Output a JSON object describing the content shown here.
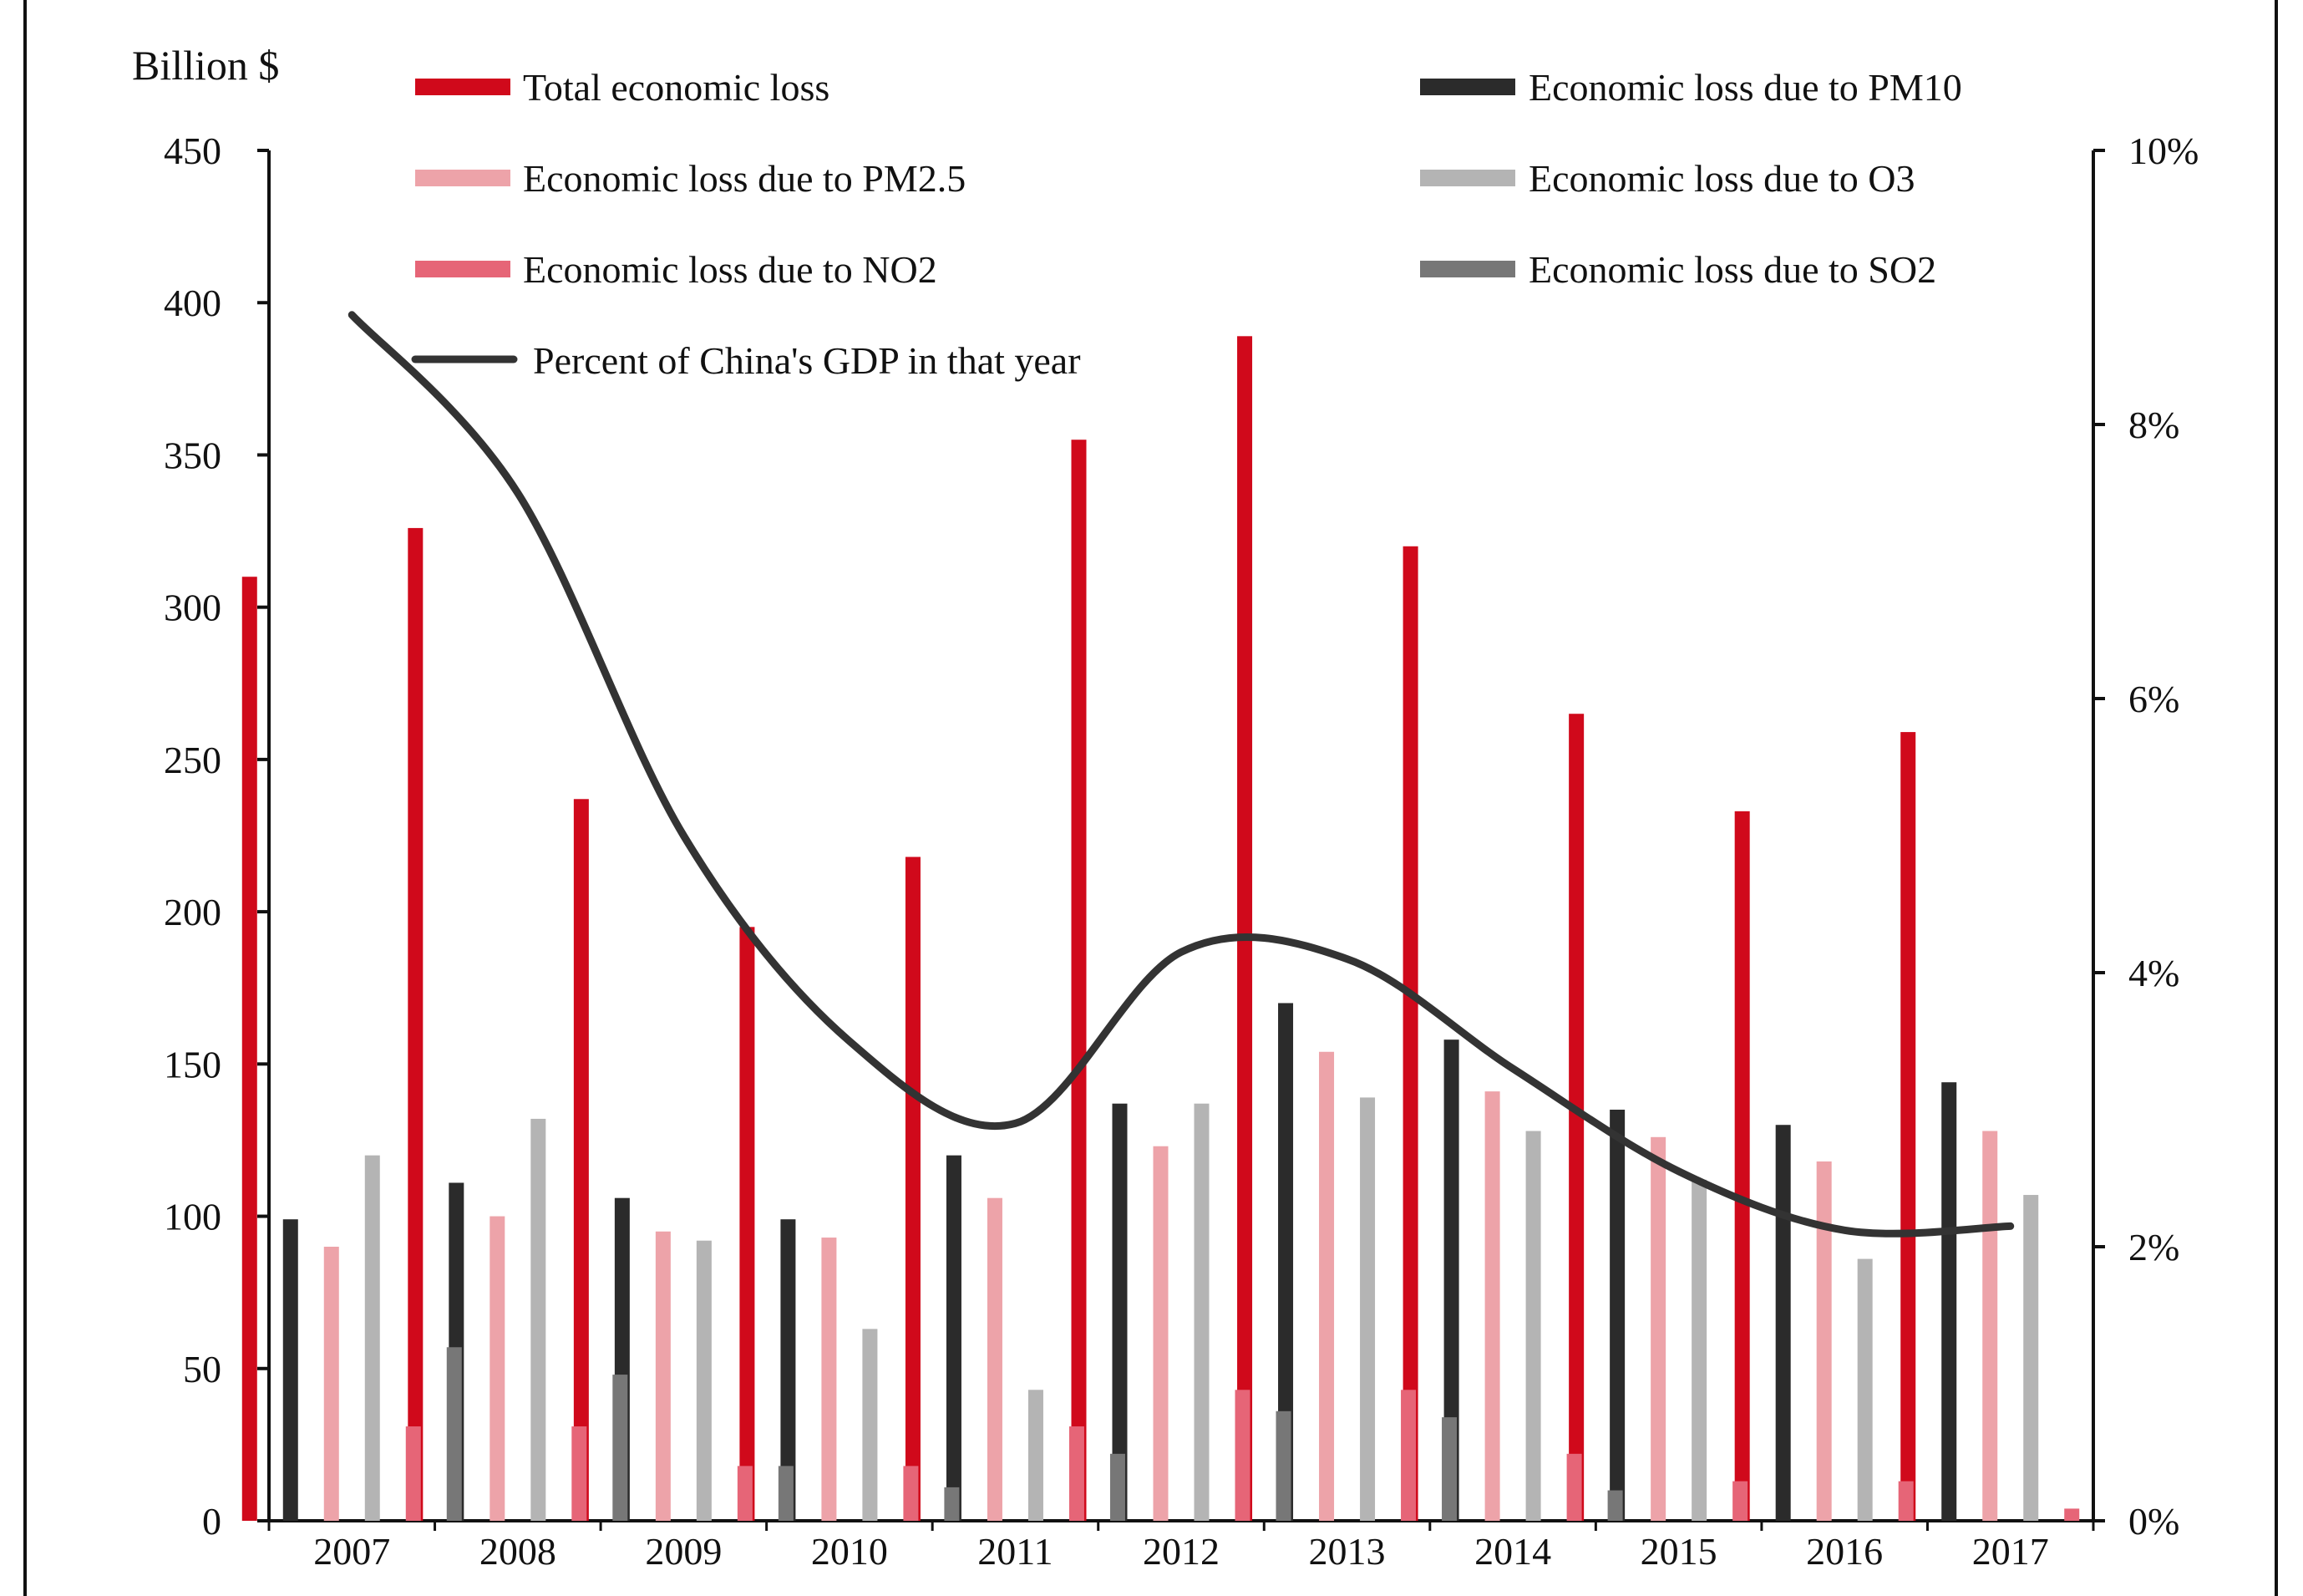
{
  "chart_data": {
    "type": "bar",
    "title": "",
    "xlabel": "",
    "ylabel": "Billion $",
    "y2label": "",
    "ylim": [
      0,
      450
    ],
    "y2lim": [
      0,
      10
    ],
    "yticks": [
      "0",
      "50",
      "100",
      "150",
      "200",
      "250",
      "300",
      "350",
      "400",
      "450"
    ],
    "y2ticks": [
      "0%",
      "2%",
      "4%",
      "6%",
      "8%",
      "10%"
    ],
    "categories": [
      "2007",
      "2008",
      "2009",
      "2010",
      "2011",
      "2012",
      "2013",
      "2014",
      "2015",
      "2016",
      "2017"
    ],
    "series": [
      {
        "key": "total",
        "name": "Total economic loss",
        "color": "#d0091b",
        "values": [
          310,
          326,
          237,
          195,
          218,
          355,
          389,
          320,
          265,
          233,
          259
        ]
      },
      {
        "key": "pm10",
        "name": "Economic loss due to PM10",
        "color": "#2b2b2b",
        "values": [
          99,
          111,
          106,
          99,
          120,
          137,
          170,
          158,
          135,
          130,
          144
        ]
      },
      {
        "key": "pm25",
        "name": "Economic loss due to PM2.5",
        "color": "#eda3a9",
        "values": [
          90,
          100,
          95,
          93,
          106,
          123,
          154,
          141,
          126,
          118,
          128
        ]
      },
      {
        "key": "o3",
        "name": "Economic loss due to O3",
        "color": "#b4b4b4",
        "values": [
          120,
          132,
          92,
          63,
          43,
          137,
          139,
          128,
          112,
          86,
          107
        ]
      },
      {
        "key": "no2",
        "name": "Economic loss due to NO2",
        "color": "#e66577",
        "values": [
          31,
          31,
          18,
          18,
          31,
          43,
          43,
          22,
          13,
          13,
          4
        ]
      },
      {
        "key": "so2",
        "name": "Economic loss due to SO2",
        "color": "#777777",
        "values": [
          57,
          48,
          18,
          11,
          22,
          36,
          34,
          10,
          0,
          0,
          0
        ]
      }
    ],
    "line_series": {
      "name": "Percent of China's GDP in that year",
      "color": "#333333",
      "axis": "right",
      "x": [
        "2007",
        "2008",
        "2009",
        "2010",
        "2011",
        "2012",
        "2013",
        "2014",
        "2015",
        "2016",
        "2017"
      ],
      "values": [
        8.8,
        7.5,
        5.0,
        3.5,
        2.9,
        4.15,
        4.1,
        3.3,
        2.55,
        2.12,
        2.15
      ]
    },
    "legend": {
      "position": "top",
      "order_left": [
        "total",
        "pm25",
        "no2"
      ],
      "order_right": [
        "pm10",
        "o3",
        "so2"
      ]
    }
  }
}
